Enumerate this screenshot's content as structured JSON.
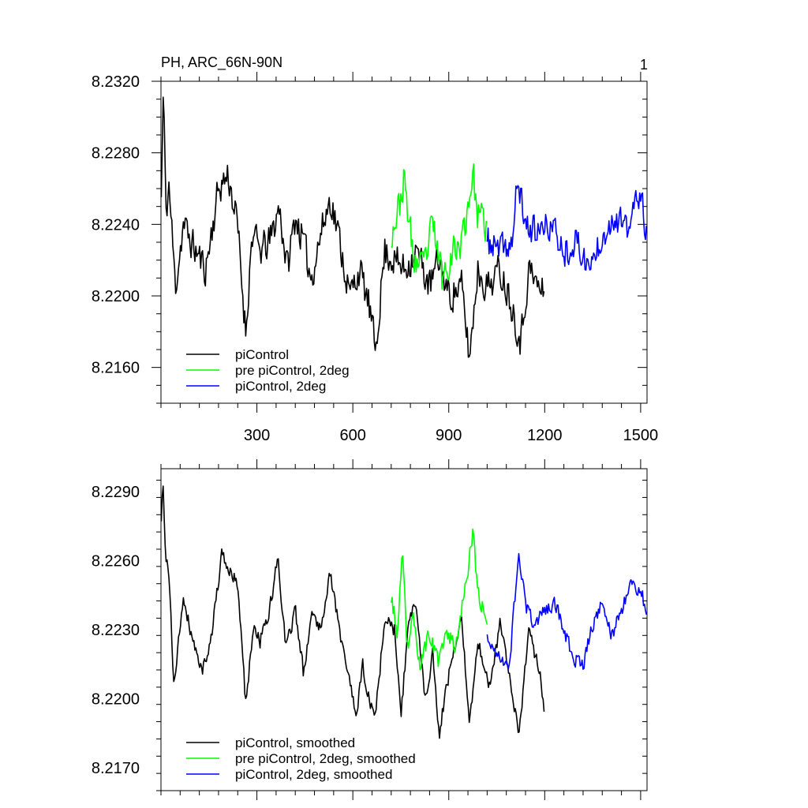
{
  "chart_data": [
    {
      "type": "line",
      "title": "PH, ARC_66N-90N",
      "corner_label": "1",
      "xlim": [
        0,
        1520
      ],
      "ylim": [
        8.214,
        8.232
      ],
      "xticks": [
        300,
        600,
        900,
        1200,
        1500
      ],
      "xtick_labels": [
        "300",
        "600",
        "900",
        "1200",
        "1500"
      ],
      "yticks": [
        8.216,
        8.22,
        8.224,
        8.228,
        8.232
      ],
      "ytick_labels": [
        "8.2160",
        "8.2200",
        "8.2240",
        "8.2280",
        "8.2320"
      ],
      "legend_position": "bottom-left",
      "series": [
        {
          "name": "piControl",
          "color": "#000000",
          "start": 1,
          "end": 1200,
          "anchors": [
            [
              1,
              8.2255
            ],
            [
              8,
              8.2318
            ],
            [
              15,
              8.2245
            ],
            [
              25,
              8.2262
            ],
            [
              45,
              8.2205
            ],
            [
              70,
              8.224
            ],
            [
              100,
              8.2228
            ],
            [
              140,
              8.2215
            ],
            [
              180,
              8.226
            ],
            [
              210,
              8.2268
            ],
            [
              240,
              8.2238
            ],
            [
              265,
              8.218
            ],
            [
              285,
              8.2235
            ],
            [
              310,
              8.2225
            ],
            [
              340,
              8.223
            ],
            [
              370,
              8.225
            ],
            [
              395,
              8.2215
            ],
            [
              420,
              8.2245
            ],
            [
              445,
              8.223
            ],
            [
              470,
              8.221
            ],
            [
              500,
              8.2235
            ],
            [
              530,
              8.2255
            ],
            [
              560,
              8.223
            ],
            [
              590,
              8.22
            ],
            [
              620,
              8.2215
            ],
            [
              650,
              8.2195
            ],
            [
              670,
              8.217
            ],
            [
              700,
              8.2225
            ],
            [
              730,
              8.222
            ],
            [
              760,
              8.2215
            ],
            [
              800,
              8.2225
            ],
            [
              840,
              8.2205
            ],
            [
              870,
              8.222
            ],
            [
              900,
              8.22
            ],
            [
              940,
              8.2205
            ],
            [
              965,
              8.2165
            ],
            [
              990,
              8.2215
            ],
            [
              1020,
              8.2205
            ],
            [
              1060,
              8.2215
            ],
            [
              1090,
              8.22
            ],
            [
              1125,
              8.2175
            ],
            [
              1150,
              8.2215
            ],
            [
              1180,
              8.2205
            ],
            [
              1200,
              8.22
            ]
          ],
          "amplitude": 0.0012,
          "seed": 11
        },
        {
          "name": "pre piControl, 2deg",
          "color": "#00ff00",
          "start": 720,
          "end": 1020,
          "anchors": [
            [
              720,
              8.2235
            ],
            [
              745,
              8.225
            ],
            [
              760,
              8.2265
            ],
            [
              790,
              8.222
            ],
            [
              820,
              8.2215
            ],
            [
              850,
              8.224
            ],
            [
              880,
              8.221
            ],
            [
              910,
              8.2225
            ],
            [
              940,
              8.223
            ],
            [
              960,
              8.225
            ],
            [
              975,
              8.227
            ],
            [
              990,
              8.2245
            ],
            [
              1020,
              8.2238
            ]
          ],
          "amplitude": 0.0012,
          "seed": 23
        },
        {
          "name": "piControl, 2deg",
          "color": "#0000ff",
          "start": 1020,
          "end": 1520,
          "anchors": [
            [
              1020,
              8.223
            ],
            [
              1060,
              8.2225
            ],
            [
              1100,
              8.223
            ],
            [
              1115,
              8.2265
            ],
            [
              1140,
              8.224
            ],
            [
              1180,
              8.2235
            ],
            [
              1220,
              8.224
            ],
            [
              1260,
              8.2225
            ],
            [
              1300,
              8.223
            ],
            [
              1340,
              8.2215
            ],
            [
              1380,
              8.2235
            ],
            [
              1420,
              8.2245
            ],
            [
              1460,
              8.2235
            ],
            [
              1490,
              8.2258
            ],
            [
              1510,
              8.2245
            ],
            [
              1520,
              8.2235
            ]
          ],
          "amplitude": 0.0011,
          "seed": 37
        }
      ]
    },
    {
      "type": "line",
      "title": "",
      "xlim": [
        0,
        1520
      ],
      "ylim": [
        8.216,
        8.23
      ],
      "xticks": [
        300,
        600,
        900,
        1200,
        1500
      ],
      "xtick_labels": [
        "",
        "",
        "",
        "",
        ""
      ],
      "yticks": [
        8.217,
        8.22,
        8.223,
        8.226,
        8.229
      ],
      "ytick_labels": [
        "8.2170",
        "8.2200",
        "8.2230",
        "8.2260",
        "8.2290"
      ],
      "legend_position": "bottom-left",
      "series": [
        {
          "name": "piControl, smoothed",
          "color": "#000000",
          "start": 1,
          "end": 1200,
          "anchors": [
            [
              1,
              8.2275
            ],
            [
              6,
              8.2296
            ],
            [
              14,
              8.226
            ],
            [
              25,
              8.2255
            ],
            [
              40,
              8.2205
            ],
            [
              70,
              8.2245
            ],
            [
              100,
              8.2225
            ],
            [
              130,
              8.2212
            ],
            [
              160,
              8.223
            ],
            [
              190,
              8.2262
            ],
            [
              215,
              8.2255
            ],
            [
              240,
              8.225
            ],
            [
              265,
              8.2198
            ],
            [
              290,
              8.2232
            ],
            [
              310,
              8.2225
            ],
            [
              340,
              8.2238
            ],
            [
              365,
              8.2262
            ],
            [
              390,
              8.2222
            ],
            [
              420,
              8.2238
            ],
            [
              445,
              8.2212
            ],
            [
              470,
              8.2236
            ],
            [
              500,
              8.2232
            ],
            [
              530,
              8.2255
            ],
            [
              560,
              8.2228
            ],
            [
              590,
              8.2208
            ],
            [
              610,
              8.219
            ],
            [
              630,
              8.2215
            ],
            [
              650,
              8.22
            ],
            [
              670,
              8.2192
            ],
            [
              700,
              8.2235
            ],
            [
              730,
              8.223
            ],
            [
              750,
              8.2192
            ],
            [
              775,
              8.2235
            ],
            [
              800,
              8.224
            ],
            [
              825,
              8.22
            ],
            [
              850,
              8.222
            ],
            [
              870,
              8.2185
            ],
            [
              900,
              8.221
            ],
            [
              940,
              8.2235
            ],
            [
              965,
              8.2188
            ],
            [
              990,
              8.2225
            ],
            [
              1030,
              8.2205
            ],
            [
              1060,
              8.2232
            ],
            [
              1090,
              8.221
            ],
            [
              1120,
              8.2185
            ],
            [
              1150,
              8.2228
            ],
            [
              1180,
              8.2215
            ],
            [
              1200,
              8.2195
            ]
          ],
          "amplitude": 0.0004,
          "seed": 41
        },
        {
          "name": "pre piControl, 2deg, smoothed",
          "color": "#00ff00",
          "start": 720,
          "end": 1020,
          "anchors": [
            [
              720,
              8.2245
            ],
            [
              740,
              8.2228
            ],
            [
              755,
              8.2262
            ],
            [
              770,
              8.2222
            ],
            [
              790,
              8.2235
            ],
            [
              810,
              8.2215
            ],
            [
              840,
              8.2228
            ],
            [
              870,
              8.2215
            ],
            [
              895,
              8.223
            ],
            [
              920,
              8.2222
            ],
            [
              945,
              8.2245
            ],
            [
              960,
              8.2255
            ],
            [
              975,
              8.2272
            ],
            [
              990,
              8.2248
            ],
            [
              1005,
              8.224
            ],
            [
              1020,
              8.2235
            ]
          ],
          "amplitude": 0.0005,
          "seed": 53
        },
        {
          "name": "piControl, 2deg, smoothed",
          "color": "#0000ff",
          "start": 1020,
          "end": 1520,
          "anchors": [
            [
              1020,
              8.2225
            ],
            [
              1060,
              8.2218
            ],
            [
              1090,
              8.2215
            ],
            [
              1110,
              8.225
            ],
            [
              1120,
              8.2262
            ],
            [
              1140,
              8.224
            ],
            [
              1170,
              8.2232
            ],
            [
              1200,
              8.2238
            ],
            [
              1230,
              8.2242
            ],
            [
              1260,
              8.223
            ],
            [
              1290,
              8.2218
            ],
            [
              1320,
              8.2215
            ],
            [
              1350,
              8.2232
            ],
            [
              1380,
              8.2242
            ],
            [
              1410,
              8.2228
            ],
            [
              1440,
              8.2238
            ],
            [
              1470,
              8.2252
            ],
            [
              1490,
              8.2248
            ],
            [
              1505,
              8.2245
            ],
            [
              1520,
              8.2235
            ]
          ],
          "amplitude": 0.0004,
          "seed": 67
        }
      ]
    }
  ]
}
